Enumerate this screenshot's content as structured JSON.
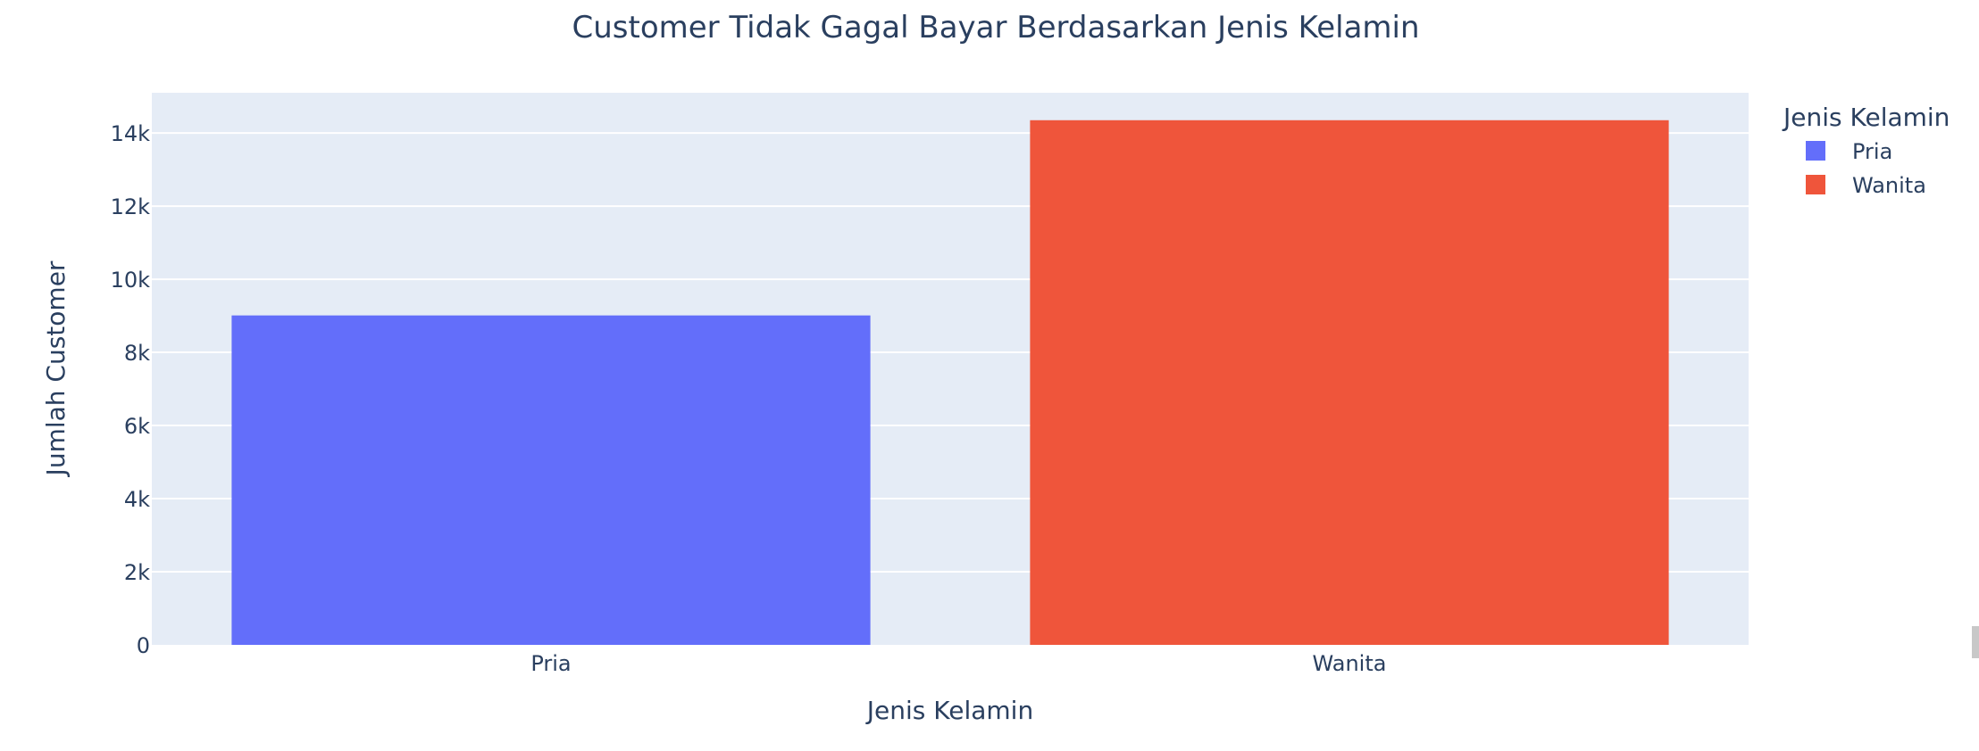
{
  "chart_data": {
    "type": "bar",
    "title": "Customer Tidak Gagal Bayar Berdasarkan Jenis Kelamin",
    "xlabel": "Jenis Kelamin",
    "ylabel": "Jumlah Customer",
    "categories": [
      "Pria",
      "Wanita"
    ],
    "series": [
      {
        "name": "Pria",
        "category": "Pria",
        "value": 9010,
        "color": "#636efa"
      },
      {
        "name": "Wanita",
        "category": "Wanita",
        "value": 14349,
        "color": "#ef553b"
      }
    ],
    "ylim": [
      0,
      15100
    ],
    "yticks": [
      0,
      2000,
      4000,
      6000,
      8000,
      10000,
      12000,
      14000
    ],
    "ytick_labels": [
      "0",
      "2k",
      "4k",
      "6k",
      "8k",
      "10k",
      "12k",
      "14k"
    ],
    "legend_title": "Jenis Kelamin",
    "legend_position": "top-right",
    "grid": true,
    "plot_background": "#e5ecf6",
    "text_color": "#2a3f5f"
  }
}
